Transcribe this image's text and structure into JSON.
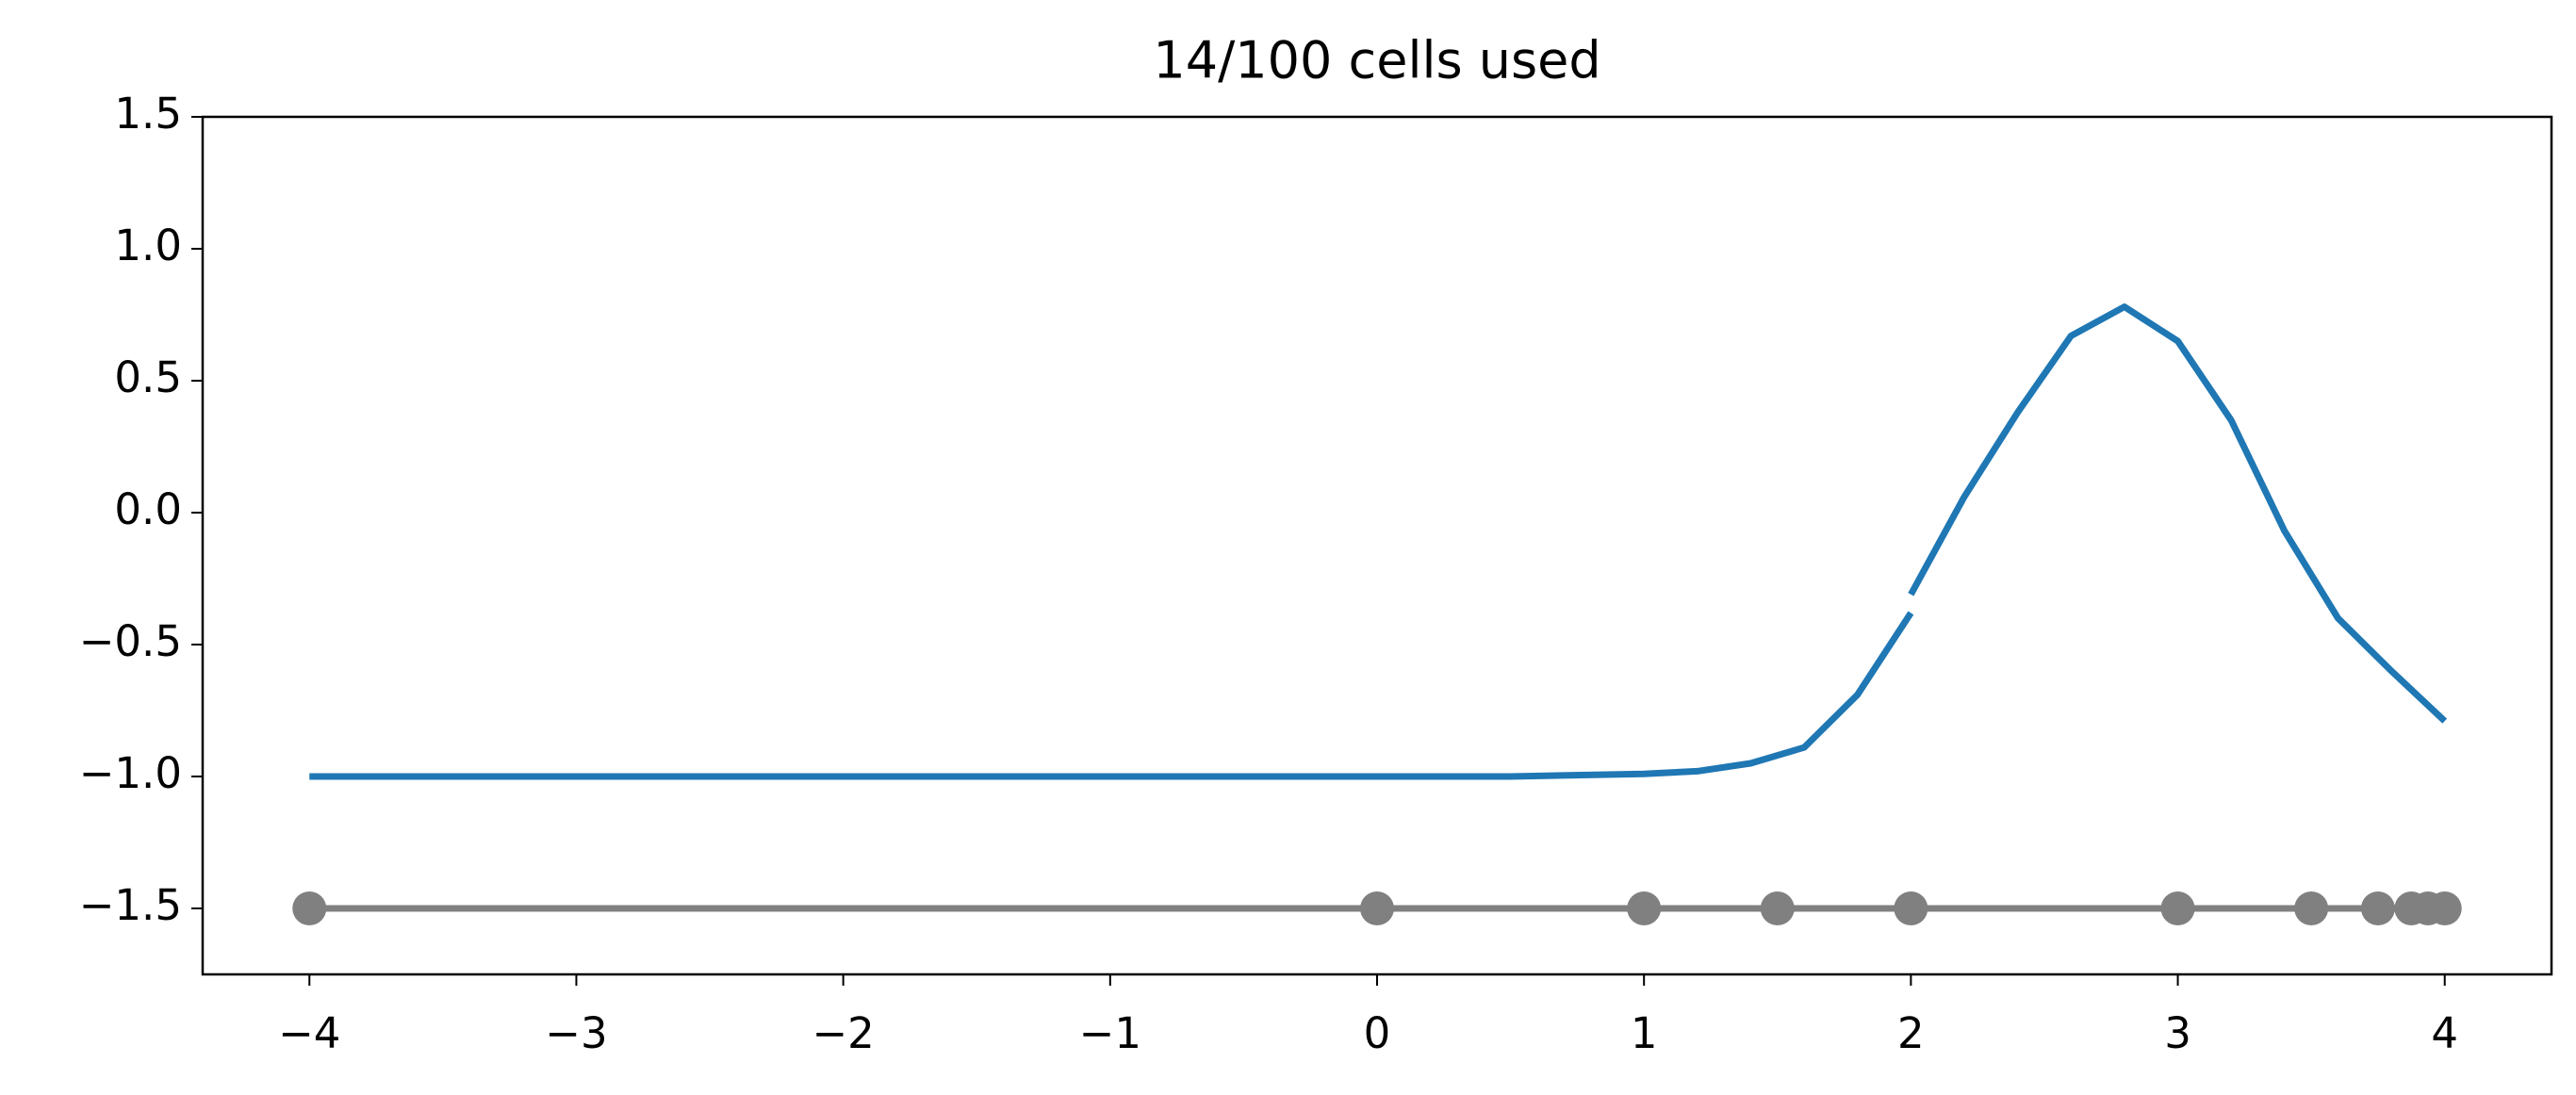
{
  "chart_data": {
    "type": "line",
    "title": "14/100 cells used",
    "series": [
      {
        "color": "#1f77b4",
        "marker": false,
        "x": [
          -4,
          -3,
          -2,
          -1,
          0,
          0.5,
          1.0,
          1.2,
          1.4,
          1.6,
          1.8,
          2.0,
          2.0,
          2.0,
          2.2,
          2.4,
          2.6,
          2.8,
          3.0,
          3.2,
          3.4,
          3.6,
          3.8,
          4.0
        ],
        "values": [
          -1,
          -1,
          -1,
          -1,
          -1,
          -1,
          -0.99,
          -0.98,
          -0.95,
          -0.89,
          -0.69,
          -0.38,
          null,
          -0.31,
          0.06,
          0.38,
          0.67,
          0.78,
          0.65,
          0.35,
          -0.07,
          -0.4,
          -0.6,
          -0.79
        ]
      },
      {
        "color": "#808080",
        "marker": true,
        "x": [
          -4,
          0,
          1,
          1.5,
          2,
          3,
          3.5,
          3.75,
          3.875,
          3.9375,
          4
        ],
        "values": [
          -1.5,
          -1.5,
          -1.5,
          -1.5,
          -1.5,
          -1.5,
          -1.5,
          -1.5,
          -1.5,
          -1.5,
          -1.5
        ]
      }
    ],
    "xlim": [
      -4.4,
      4.4
    ],
    "xticks": [
      {
        "value": -4,
        "label": "−4"
      },
      {
        "value": -3,
        "label": "−3"
      },
      {
        "value": -2,
        "label": "−2"
      },
      {
        "value": -1,
        "label": "−1"
      },
      0,
      1,
      2,
      3,
      4
    ],
    "ylim": [
      -1.75,
      1.5
    ],
    "yticks": [
      {
        "value": -1.5,
        "label": "−1.5"
      },
      {
        "value": -1,
        "label": "−1.0"
      },
      {
        "value": -0.5,
        "label": "−0.5"
      },
      {
        "value": 0,
        "label": "0.0"
      },
      0.5,
      {
        "value": 1,
        "label": "1.0"
      },
      1.5
    ],
    "grid": false
  }
}
